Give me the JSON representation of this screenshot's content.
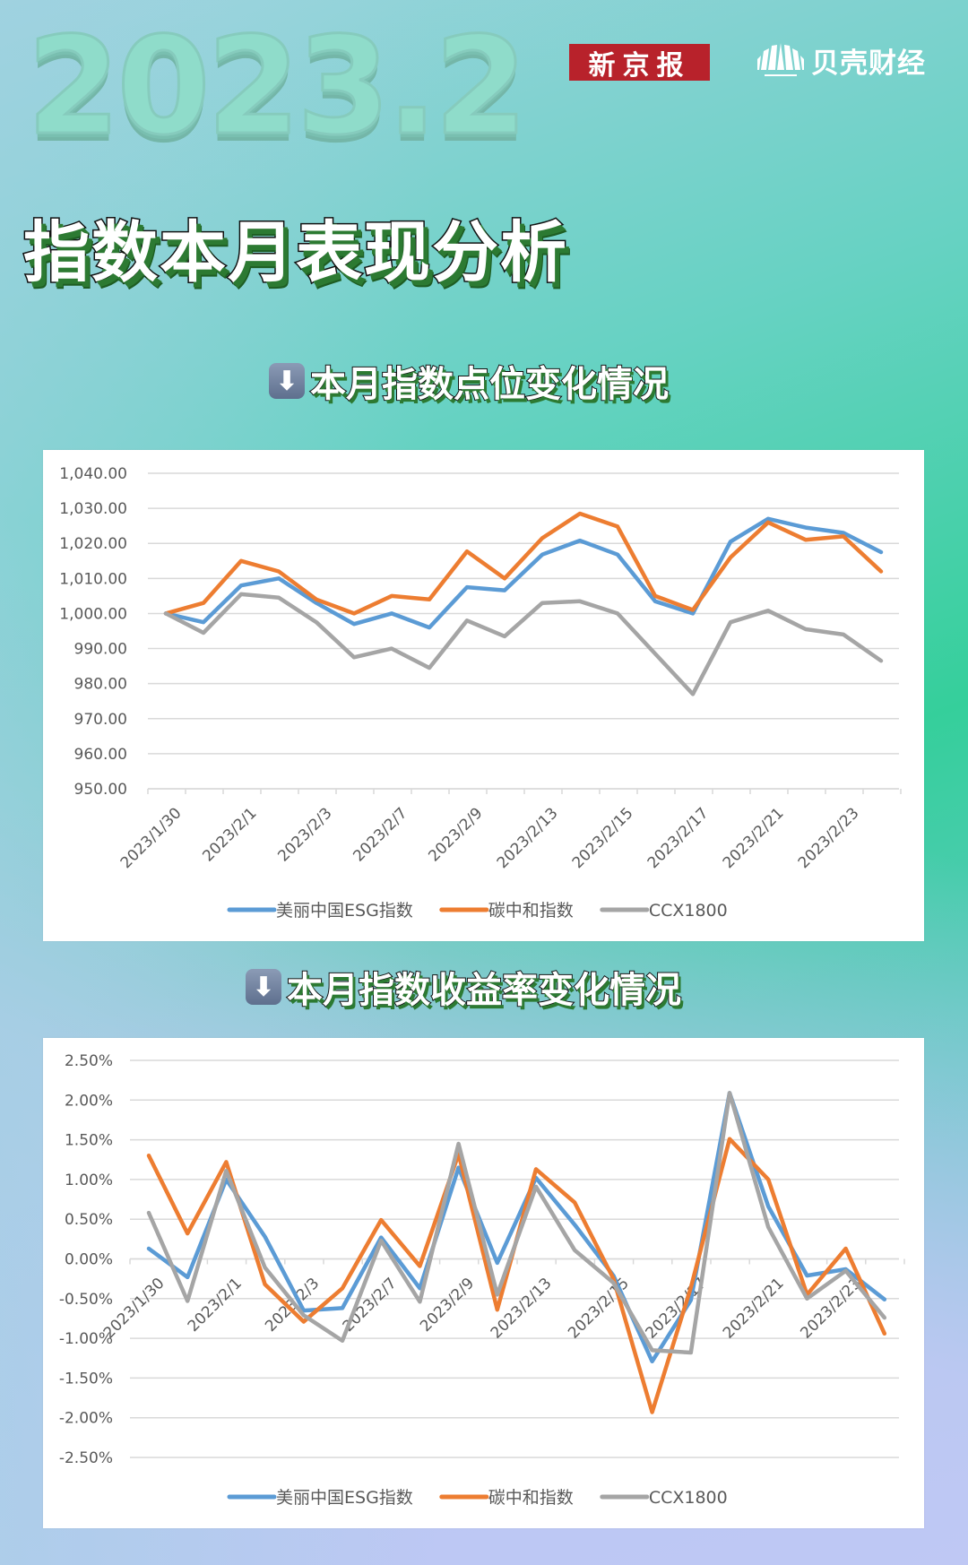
{
  "header": {
    "year_label": "2023.2",
    "logo_left": "新京报",
    "logo_right": "贝壳财经",
    "title": "指数本月表现分析"
  },
  "sections": [
    {
      "icon": "down-arrow-icon",
      "title": "本月指数点位变化情况"
    },
    {
      "icon": "down-arrow-icon",
      "title": "本月指数收益率变化情况"
    }
  ],
  "colors": {
    "esg": "#5b9bd5",
    "carbon": "#ed7d31",
    "ccx": "#a5a5a5",
    "logo_red": "#b8222b"
  },
  "chart_data": [
    {
      "type": "line",
      "title": "本月指数点位变化情况",
      "xlabel": "",
      "ylabel": "",
      "ylim": [
        950,
        1040
      ],
      "yticks": [
        "1,040.00",
        "1,030.00",
        "1,020.00",
        "1,010.00",
        "1,000.00",
        "990.00",
        "980.00",
        "970.00",
        "960.00",
        "950.00"
      ],
      "grid": true,
      "legend_position": "bottom",
      "x": [
        "2023/1/30",
        "2023/1/31",
        "2023/2/1",
        "2023/2/2",
        "2023/2/3",
        "2023/2/6",
        "2023/2/7",
        "2023/2/8",
        "2023/2/9",
        "2023/2/10",
        "2023/2/13",
        "2023/2/14",
        "2023/2/15",
        "2023/2/16",
        "2023/2/17",
        "2023/2/20",
        "2023/2/21",
        "2023/2/22",
        "2023/2/23",
        "2023/2/24"
      ],
      "xtick_labels": [
        "2023/1/30",
        "2023/2/1",
        "2023/2/3",
        "2023/2/7",
        "2023/2/9",
        "2023/2/13",
        "2023/2/15",
        "2023/2/17",
        "2023/2/21",
        "2023/2/23"
      ],
      "series": [
        {
          "name": "美丽中国ESG指数",
          "color": "#5b9bd5",
          "values": [
            1000,
            997.5,
            1008,
            1010,
            1003,
            997,
            1000,
            996,
            1007.5,
            1006.6,
            1016.8,
            1020.8,
            1016.8,
            1003.5,
            1000,
            1020.5,
            1027,
            1024.5,
            1023,
            1017.5
          ]
        },
        {
          "name": "碳中和指数",
          "color": "#ed7d31",
          "values": [
            1000,
            1003,
            1015,
            1012,
            1004,
            1000,
            1005,
            1004,
            1017.7,
            1010,
            1021.5,
            1028.5,
            1024.8,
            1005,
            1001,
            1016,
            1026,
            1021,
            1022,
            1012
          ]
        },
        {
          "name": "CCX1800",
          "color": "#a5a5a5",
          "values": [
            1000,
            994.5,
            1005.5,
            1004.5,
            997.5,
            987.5,
            990,
            984.5,
            998,
            993.5,
            1003,
            1003.5,
            1000,
            988.5,
            977,
            997.5,
            1000.8,
            995.5,
            994,
            986.5
          ]
        }
      ]
    },
    {
      "type": "line",
      "title": "本月指数收益率变化情况",
      "xlabel": "",
      "ylabel": "",
      "ylim": [
        -2.5,
        2.5
      ],
      "yticks": [
        "2.50%",
        "2.00%",
        "1.50%",
        "1.00%",
        "0.50%",
        "0.00%",
        "-0.50%",
        "-1.00%",
        "-1.50%",
        "-2.00%",
        "-2.50%"
      ],
      "grid": true,
      "legend_position": "bottom",
      "x": [
        "2023/1/30",
        "2023/1/31",
        "2023/2/1",
        "2023/2/2",
        "2023/2/3",
        "2023/2/6",
        "2023/2/7",
        "2023/2/8",
        "2023/2/9",
        "2023/2/10",
        "2023/2/13",
        "2023/2/14",
        "2023/2/15",
        "2023/2/16",
        "2023/2/17",
        "2023/2/20",
        "2023/2/21",
        "2023/2/22",
        "2023/2/23",
        "2023/2/24"
      ],
      "xtick_labels": [
        "2023/1/30",
        "2023/2/1",
        "2023/2/3",
        "2023/2/7",
        "2023/2/9",
        "2023/2/13",
        "2023/2/15",
        "2023/2/17",
        "2023/2/21",
        "2023/2/23"
      ],
      "series": [
        {
          "name": "美丽中国ESG指数",
          "color": "#5b9bd5",
          "values": [
            0.13,
            -0.23,
            1.0,
            0.28,
            -0.65,
            -0.62,
            0.27,
            -0.37,
            1.15,
            -0.05,
            1.02,
            0.43,
            -0.21,
            -1.29,
            -0.52,
            2.09,
            0.66,
            -0.21,
            -0.13,
            -0.51
          ]
        },
        {
          "name": "碳中和指数",
          "color": "#ed7d31",
          "values": [
            1.3,
            0.32,
            1.22,
            -0.32,
            -0.79,
            -0.37,
            0.49,
            -0.09,
            1.32,
            -0.64,
            1.13,
            0.71,
            -0.25,
            -1.93,
            -0.36,
            1.51,
            1.0,
            -0.45,
            0.13,
            -0.94
          ]
        },
        {
          "name": "CCX1800",
          "color": "#a5a5a5",
          "values": [
            0.58,
            -0.53,
            1.11,
            -0.11,
            -0.71,
            -1.03,
            0.23,
            -0.54,
            1.45,
            -0.45,
            0.91,
            0.11,
            -0.3,
            -1.15,
            -1.18,
            2.09,
            0.4,
            -0.5,
            -0.15,
            -0.74
          ]
        }
      ]
    }
  ]
}
